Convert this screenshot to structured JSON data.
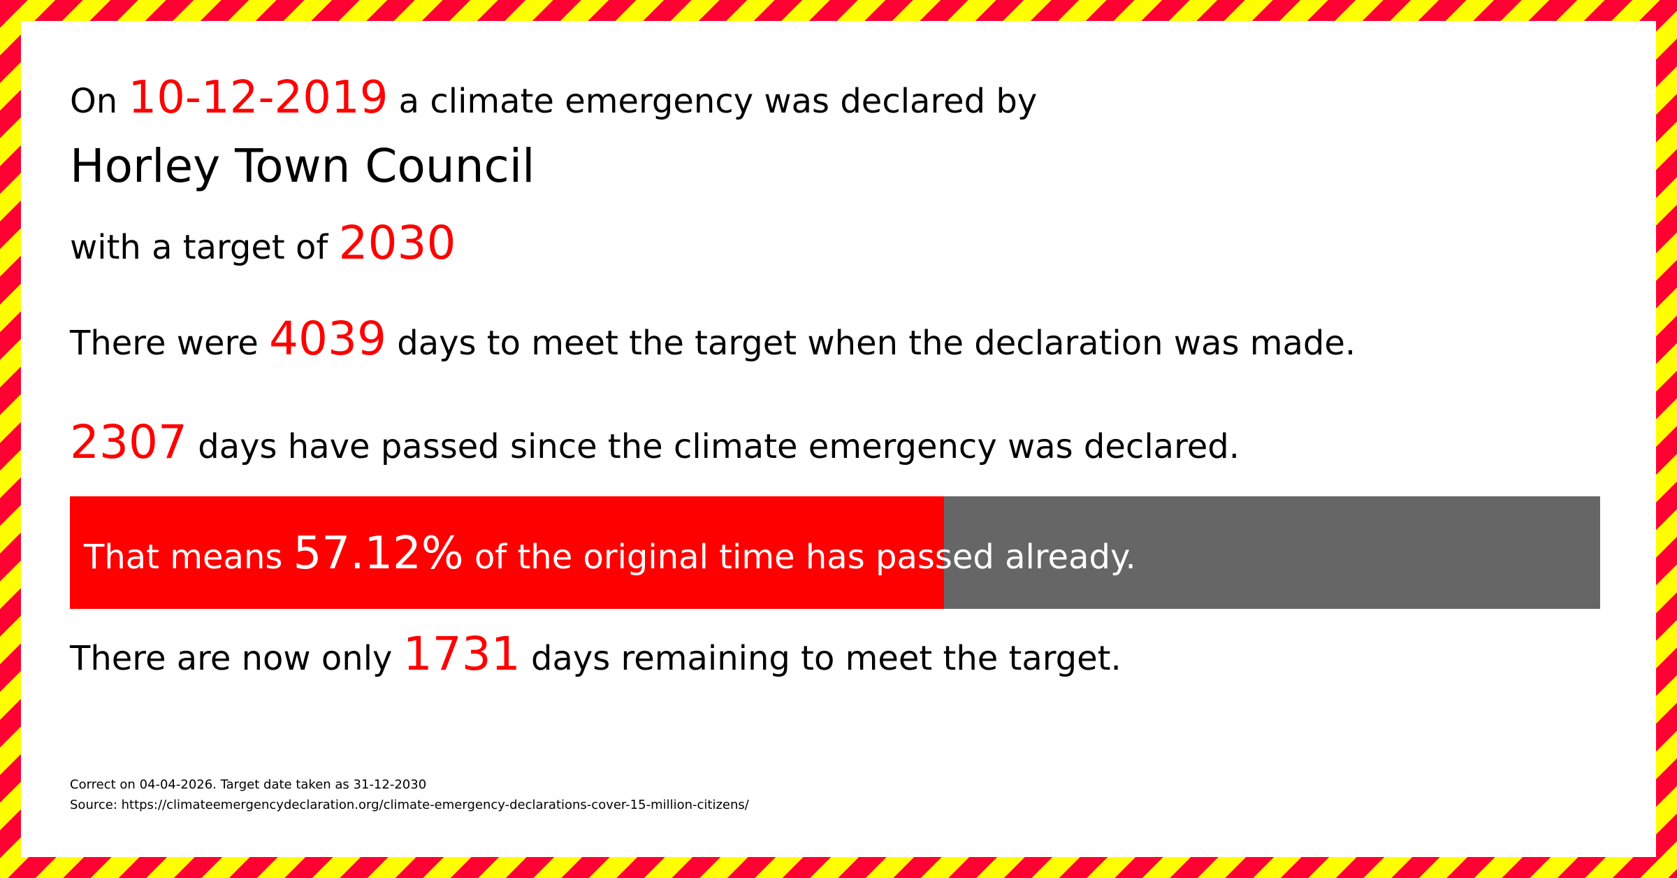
{
  "colors": {
    "accent": "#ff0000",
    "bar_remaining": "#666666",
    "stripe_red": "#ff0033",
    "stripe_yellow": "#ffff00"
  },
  "line1": {
    "prefix": "On",
    "date": "10-12-2019",
    "suffix": "a climate emergency was declared by"
  },
  "council_name": "Horley Town Council",
  "line3": {
    "prefix": "with a target of",
    "target": "2030"
  },
  "line4": {
    "prefix": "There were",
    "days": "4039",
    "suffix": "days to meet the target when the declaration was made."
  },
  "line5": {
    "days": "2307",
    "suffix": "days have passed since the climate emergency was declared."
  },
  "progress": {
    "prefix": "That means",
    "percent_label": "57.12%",
    "suffix": "of the original time has passed already.",
    "fraction": 0.5712
  },
  "line7": {
    "prefix": "There are now only",
    "days": "1731",
    "suffix": "days remaining to meet the target."
  },
  "footer": {
    "correct_on": "Correct on 04-04-2026. Target date taken as 31-12-2030",
    "source": "Source: https://climateemergencydeclaration.org/climate-emergency-declarations-cover-15-million-citizens/"
  }
}
